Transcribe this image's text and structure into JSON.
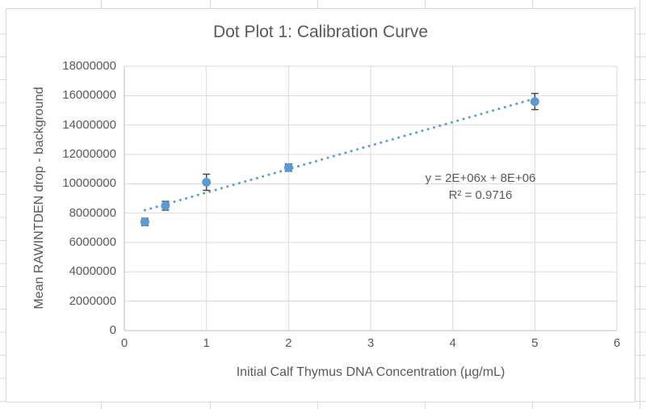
{
  "worksheet": {
    "grid_color": "#d8d8d8"
  },
  "chart_data": {
    "type": "scatter",
    "title": "Dot Plot 1: Calibration Curve",
    "xlabel": "Initial Calf Thymus DNA Concentration (µg/mL)",
    "ylabel": "Mean RAWINTDEN drop - background",
    "xlim": [
      0,
      6
    ],
    "ylim": [
      0,
      18000000
    ],
    "x_ticks": [
      0,
      1,
      2,
      3,
      4,
      5,
      6
    ],
    "y_ticks": [
      0,
      2000000,
      4000000,
      6000000,
      8000000,
      10000000,
      12000000,
      14000000,
      16000000,
      18000000
    ],
    "grid": true,
    "legend": false,
    "points": [
      {
        "x": 0.25,
        "y": 7400000,
        "yerr": 250000
      },
      {
        "x": 0.5,
        "y": 8500000,
        "yerr": 300000
      },
      {
        "x": 1,
        "y": 10100000,
        "yerr": 550000
      },
      {
        "x": 2,
        "y": 11100000,
        "yerr": 250000
      },
      {
        "x": 5,
        "y": 15600000,
        "yerr": 550000
      }
    ],
    "trendline": {
      "style": "dotted",
      "x_start": 0.25,
      "x_end": 5,
      "slope": 1600000,
      "intercept": 7800000,
      "equation": "y = 2E+06x + 8E+06",
      "r_squared_label": "R² = 0.9716"
    },
    "colors": {
      "marker": "#5b9bd5",
      "trendline": "#5b9bd5",
      "error_bar": "#404040",
      "gridline": "#d9d9d9",
      "axis_line": "#bfbfbf",
      "text": "#595959"
    }
  }
}
